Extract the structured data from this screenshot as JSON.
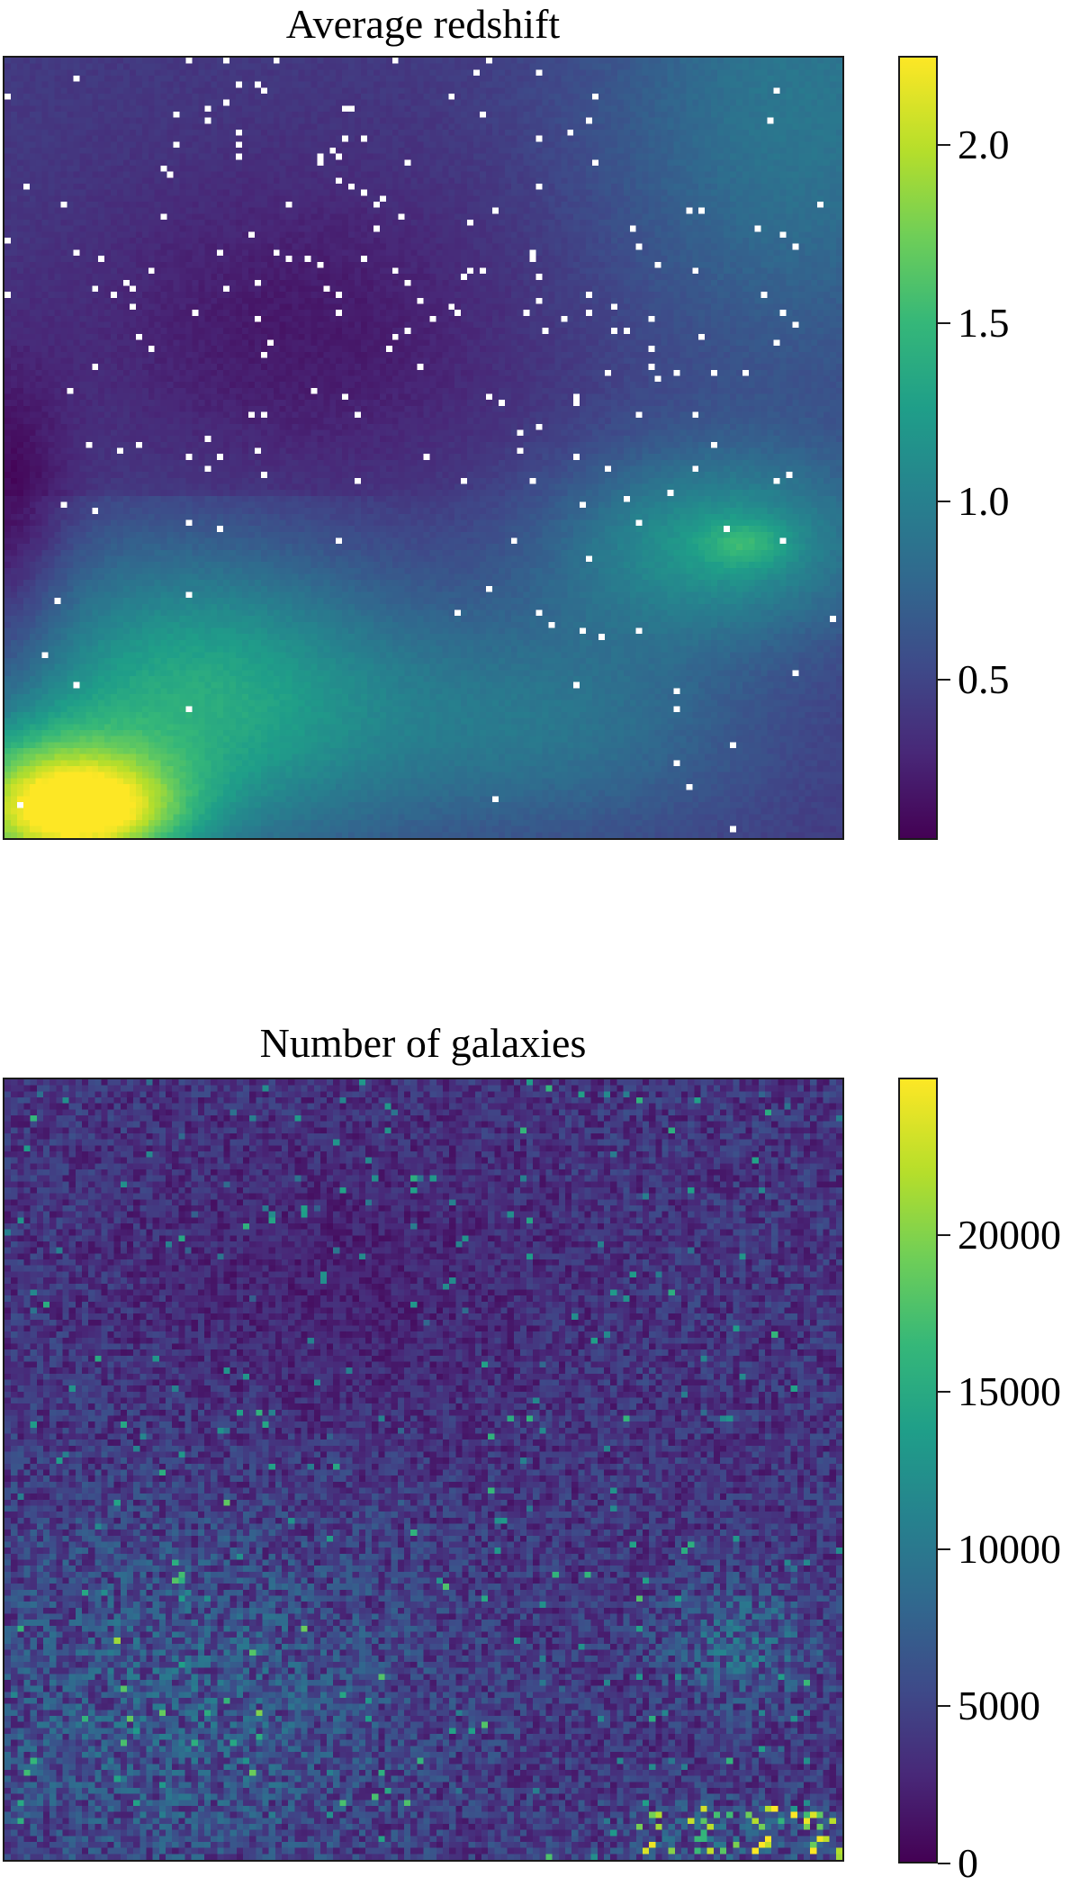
{
  "chart_data": [
    {
      "type": "heatmap",
      "title": "Average redshift",
      "xlabel": "",
      "ylabel": "",
      "colormap": "viridis",
      "missing_value_color": "#ffffff",
      "colorbar": {
        "vmin": 0.05,
        "vmax": 2.25,
        "ticks": [
          0.5,
          1.0,
          1.5,
          2.0
        ],
        "tick_labels": [
          "0.5",
          "1.0",
          "1.5",
          "2.0"
        ]
      },
      "grid_shape": [
        134,
        130
      ],
      "regions": [
        {
          "area": "top-left / upper-middle",
          "approx_value": 0.35
        },
        {
          "area": "left edge, middle",
          "approx_value": 0.1
        },
        {
          "area": "top-right",
          "approx_value": 0.9
        },
        {
          "area": "right, middle (bright patch)",
          "approx_value": 1.4
        },
        {
          "area": "lower-left",
          "approx_value": 1.35
        },
        {
          "area": "bottom-left corner",
          "approx_value": 2.15
        },
        {
          "area": "lower-right",
          "approx_value": 0.9
        }
      ],
      "grid": false,
      "legend": "none"
    },
    {
      "type": "heatmap",
      "title": "Number of galaxies",
      "xlabel": "",
      "ylabel": "",
      "colormap": "viridis",
      "colorbar": {
        "vmin": 0,
        "vmax": 25000,
        "ticks": [
          0,
          5000,
          10000,
          15000,
          20000
        ],
        "tick_labels": [
          "0",
          "5000",
          "10000",
          "15000",
          "20000"
        ]
      },
      "grid_shape": [
        130,
        130
      ],
      "regions": [
        {
          "area": "overall (noisy)",
          "approx_value": 4000
        },
        {
          "area": "lower-left",
          "approx_value": 7000
        },
        {
          "area": "right, lower-middle",
          "approx_value": 8000
        },
        {
          "area": "bottom-right hotspots",
          "approx_value": 20000
        }
      ],
      "grid": false,
      "legend": "none"
    }
  ]
}
